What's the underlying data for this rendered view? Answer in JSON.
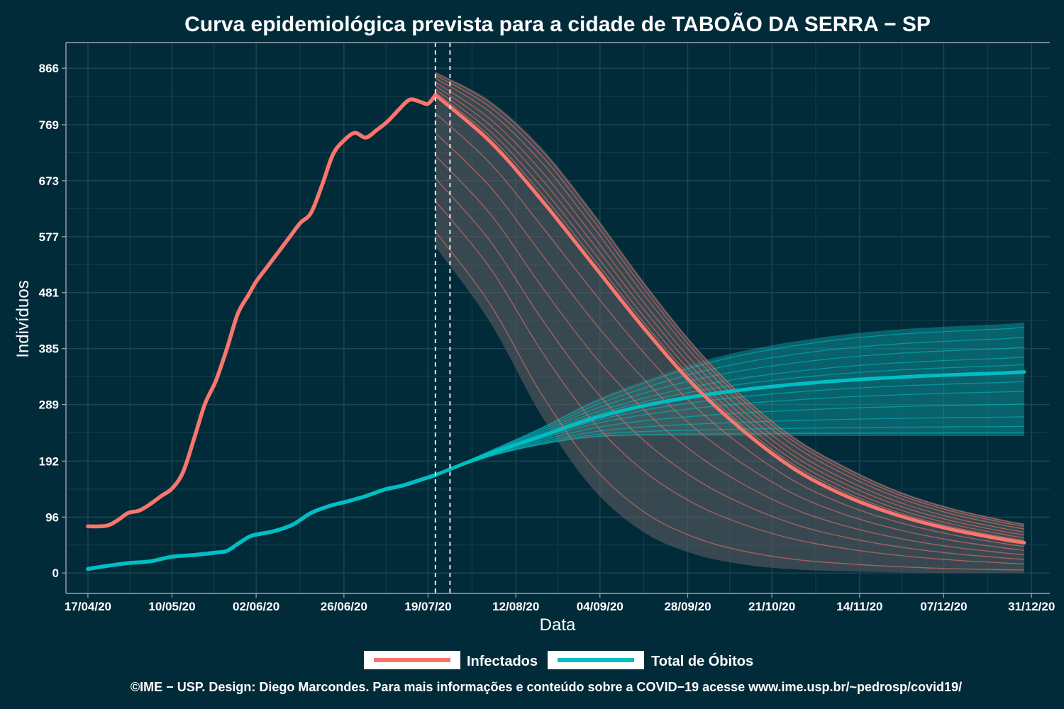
{
  "chart_data": {
    "type": "line",
    "title": "Curva epidemiológica prevista para a cidade de TABOÃO DA SERRA − SP",
    "xlabel": "Data",
    "ylabel": "Indivíduos",
    "caption": "©IME − USP. Design: Diego Marcondes. Para mais informações e conteúdo sobre a COVID−19 acesse www.ime.usp.br/~pedrosp/covid19/",
    "x_axis": {
      "type": "date",
      "range": [
        "2020-04-11",
        "2021-01-05"
      ],
      "ticks": [
        "2020-04-17",
        "2020-05-10",
        "2020-06-02",
        "2020-06-26",
        "2020-07-19",
        "2020-08-12",
        "2020-09-04",
        "2020-09-28",
        "2020-10-21",
        "2020-11-14",
        "2020-12-07",
        "2020-12-31"
      ],
      "tick_labels": [
        "17/04/20",
        "10/05/20",
        "02/06/20",
        "26/06/20",
        "19/07/20",
        "12/08/20",
        "04/09/20",
        "28/09/20",
        "21/10/20",
        "14/11/20",
        "07/12/20",
        "31/12/20"
      ]
    },
    "y_axis": {
      "range": [
        -35,
        910
      ],
      "ticks": [
        0,
        96,
        192,
        289,
        385,
        481,
        577,
        673,
        769,
        866
      ],
      "tick_labels": [
        "0",
        "96",
        "192",
        "289",
        "385",
        "481",
        "577",
        "673",
        "769",
        "866"
      ]
    },
    "grid": true,
    "legend_position": "bottom",
    "vlines": [
      {
        "date": "2020-07-21",
        "style": "dashed"
      },
      {
        "date": "2020-07-25",
        "style": "dashed"
      }
    ],
    "series": [
      {
        "name": "Infectados",
        "color": "#f8766d",
        "observed": {
          "x": [
            "2020-04-17",
            "2020-04-22",
            "2020-04-25",
            "2020-04-28",
            "2020-05-01",
            "2020-05-04",
            "2020-05-07",
            "2020-05-10",
            "2020-05-13",
            "2020-05-16",
            "2020-05-19",
            "2020-05-22",
            "2020-05-25",
            "2020-05-28",
            "2020-05-31",
            "2020-06-02",
            "2020-06-05",
            "2020-06-08",
            "2020-06-11",
            "2020-06-14",
            "2020-06-17",
            "2020-06-20",
            "2020-06-23",
            "2020-06-26",
            "2020-06-29",
            "2020-07-02",
            "2020-07-05",
            "2020-07-08",
            "2020-07-11",
            "2020-07-14",
            "2020-07-17",
            "2020-07-19",
            "2020-07-21"
          ],
          "y": [
            80,
            81,
            90,
            103,
            107,
            118,
            132,
            145,
            173,
            230,
            290,
            330,
            385,
            445,
            478,
            500,
            525,
            550,
            575,
            600,
            618,
            665,
            718,
            742,
            755,
            747,
            760,
            775,
            795,
            812,
            808,
            805,
            820
          ]
        },
        "projection": {
          "x": [
            "2020-07-21",
            "2020-08-05",
            "2020-08-19",
            "2020-09-02",
            "2020-09-16",
            "2020-09-30",
            "2020-10-14",
            "2020-10-28",
            "2020-11-11",
            "2020-11-25",
            "2020-12-09",
            "2020-12-23",
            "2020-12-29"
          ],
          "median": [
            820,
            740,
            640,
            530,
            420,
            320,
            240,
            175,
            130,
            98,
            75,
            58,
            52
          ],
          "band_upper": [
            860,
            810,
            730,
            620,
            500,
            390,
            300,
            230,
            180,
            140,
            112,
            92,
            85
          ],
          "band_lower": [
            560,
            430,
            270,
            145,
            70,
            32,
            14,
            6,
            3,
            1,
            0,
            0,
            0
          ]
        }
      },
      {
        "name": "Total de Óbitos",
        "color": "#00bfc4",
        "observed": {
          "x": [
            "2020-04-17",
            "2020-04-22",
            "2020-04-28",
            "2020-05-04",
            "2020-05-10",
            "2020-05-16",
            "2020-05-22",
            "2020-05-25",
            "2020-05-28",
            "2020-05-31",
            "2020-06-02",
            "2020-06-07",
            "2020-06-12",
            "2020-06-17",
            "2020-06-22",
            "2020-06-27",
            "2020-07-02",
            "2020-07-07",
            "2020-07-12",
            "2020-07-17",
            "2020-07-21"
          ],
          "y": [
            7,
            12,
            17,
            20,
            28,
            31,
            35,
            38,
            50,
            62,
            66,
            72,
            83,
            103,
            115,
            123,
            132,
            143,
            150,
            160,
            168
          ]
        },
        "projection": {
          "x": [
            "2020-07-21",
            "2020-08-05",
            "2020-08-19",
            "2020-09-02",
            "2020-09-16",
            "2020-09-30",
            "2020-10-14",
            "2020-10-28",
            "2020-11-11",
            "2020-11-25",
            "2020-12-09",
            "2020-12-23",
            "2020-12-29"
          ],
          "median": [
            168,
            205,
            235,
            265,
            287,
            303,
            315,
            324,
            331,
            336,
            340,
            343,
            345
          ],
          "band_upper": [
            168,
            210,
            250,
            295,
            330,
            360,
            382,
            398,
            410,
            418,
            423,
            427,
            430
          ],
          "band_lower": [
            168,
            200,
            220,
            232,
            235,
            235,
            235,
            235,
            235,
            235,
            235,
            235,
            235
          ]
        }
      }
    ]
  }
}
